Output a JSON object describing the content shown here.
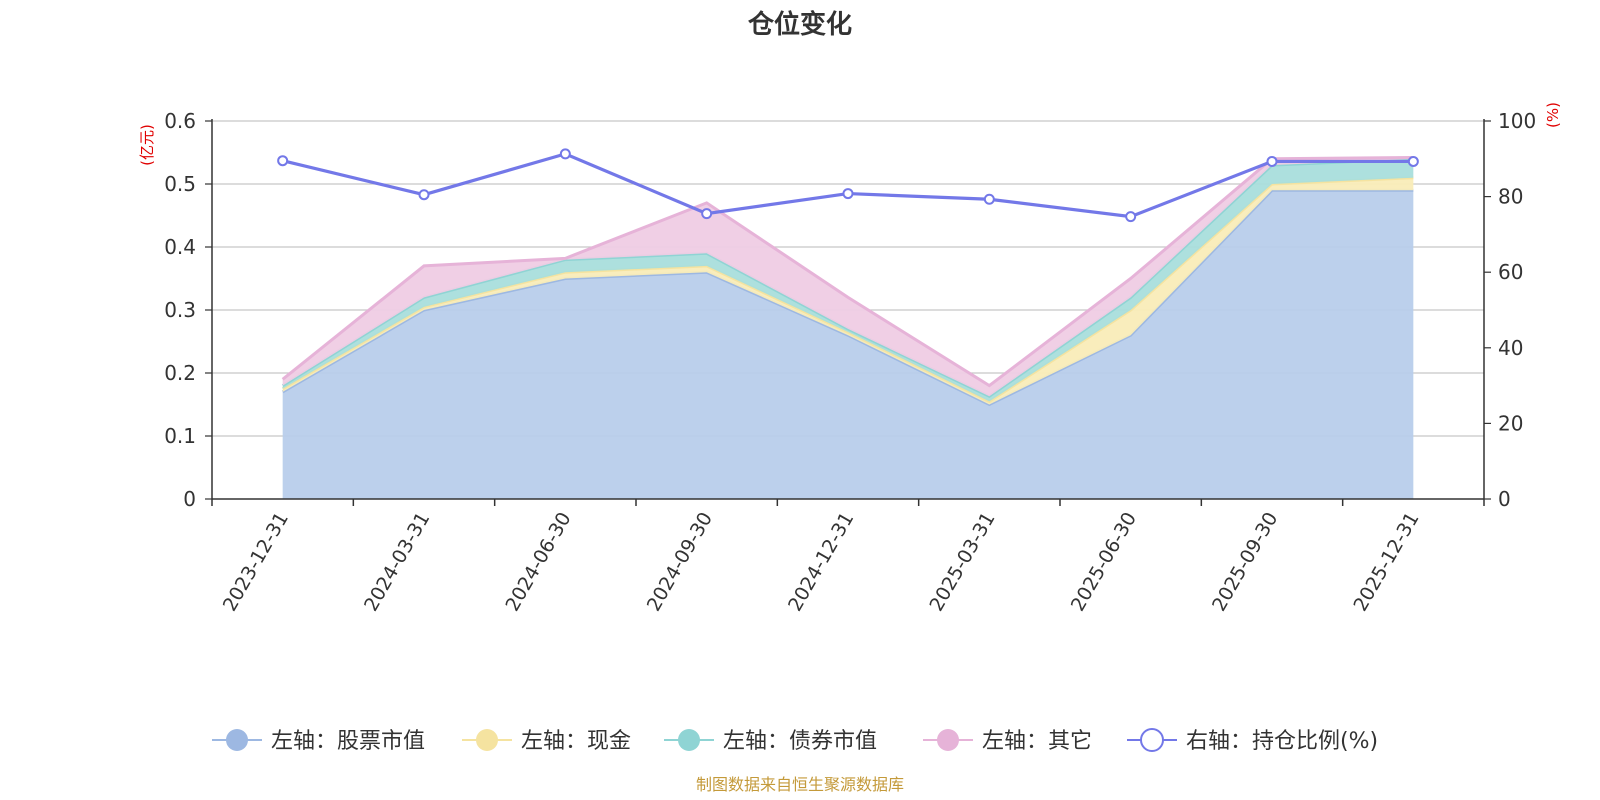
{
  "chart_data": {
    "type": "area",
    "title": "仓位变化",
    "left_unit": "(亿元)",
    "right_unit": "(%)",
    "categories": [
      "2023-12-31",
      "2024-03-31",
      "2024-06-30",
      "2024-09-30",
      "2024-12-31",
      "2025-03-31",
      "2025-06-30",
      "2025-09-30",
      "2025-12-31"
    ],
    "left_axis": {
      "min": 0,
      "max": 0.6,
      "ticks": [
        "0",
        "0.1",
        "0.2",
        "0.3",
        "0.4",
        "0.5",
        "0.6"
      ]
    },
    "right_axis": {
      "min": 0,
      "max": 100,
      "ticks": [
        "0",
        "20",
        "40",
        "60",
        "80",
        "100"
      ]
    },
    "stacked_series": [
      {
        "name": "左轴：股票市值",
        "color": "#9db8e2",
        "fill": "#b8cdeb",
        "values": [
          0.17,
          0.3,
          0.35,
          0.36,
          0.26,
          0.15,
          0.26,
          0.49,
          0.49
        ]
      },
      {
        "name": "左轴：现金",
        "color": "#f5e3a0",
        "fill": "#f9ecb8",
        "values": [
          0.005,
          0.005,
          0.01,
          0.01,
          0.005,
          0.005,
          0.04,
          0.01,
          0.02
        ]
      },
      {
        "name": "左轴：债券市值",
        "color": "#8fd4d4",
        "fill": "#a9dedc",
        "values": [
          0.005,
          0.015,
          0.02,
          0.02,
          0.005,
          0.008,
          0.02,
          0.03,
          0.03
        ]
      },
      {
        "name": "左轴：其它",
        "color": "#e6b3d8",
        "fill": "#efcce4",
        "values": [
          0.01,
          0.05,
          0.002,
          0.08,
          0.05,
          0.017,
          0.03,
          0.01,
          0.002
        ]
      }
    ],
    "line_series": {
      "name": "右轴：持仓比例(%)",
      "color": "#7378e8",
      "values": [
        89.5,
        80.5,
        91.3,
        75.5,
        80.8,
        79.3,
        74.7,
        89.3,
        89.3
      ]
    },
    "source": "制图数据来自恒生聚源数据库"
  }
}
